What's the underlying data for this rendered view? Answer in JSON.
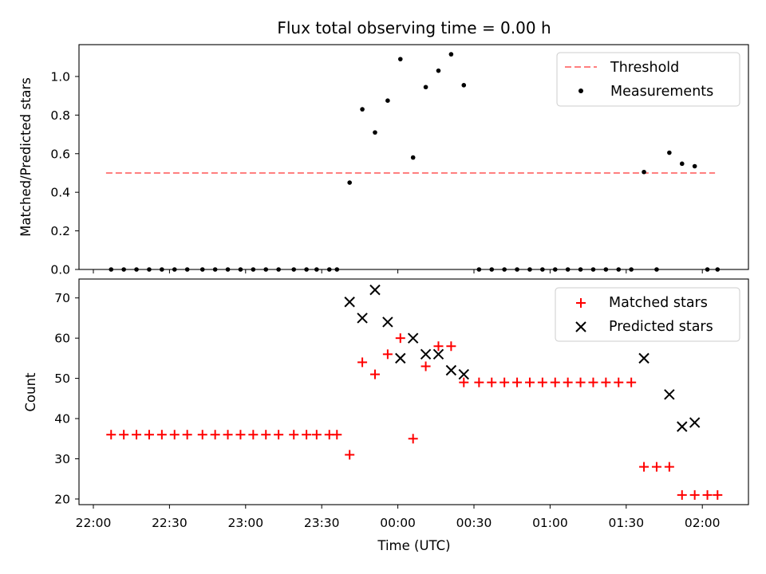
{
  "chart_data": [
    {
      "type": "scatter",
      "title": "Flux total observing time = 0.00 h",
      "xlabel": "",
      "ylabel": "Matched/Predicted stars",
      "ylim": [
        0,
        1.165
      ],
      "yticks": [
        "0.0",
        "0.2",
        "0.4",
        "0.6",
        "0.8",
        "1.0"
      ],
      "grid": false,
      "legend_position": "top-right",
      "threshold": {
        "name": "Threshold",
        "color": "#ff7f7f",
        "value": 0.5,
        "x_range": [
          "22:05",
          "02:05"
        ]
      },
      "measurements": {
        "name": "Measurements",
        "color": "#000000",
        "points": [
          [
            "22:07",
            0.0
          ],
          [
            "22:12",
            0.0
          ],
          [
            "22:17",
            0.0
          ],
          [
            "22:22",
            0.0
          ],
          [
            "22:27",
            0.0
          ],
          [
            "22:32",
            0.0
          ],
          [
            "22:37",
            0.0
          ],
          [
            "22:43",
            0.0
          ],
          [
            "22:48",
            0.0
          ],
          [
            "22:53",
            0.0
          ],
          [
            "22:58",
            0.0
          ],
          [
            "23:03",
            0.0
          ],
          [
            "23:08",
            0.0
          ],
          [
            "23:13",
            0.0
          ],
          [
            "23:19",
            0.0
          ],
          [
            "23:24",
            0.0
          ],
          [
            "23:28",
            0.0
          ],
          [
            "23:33",
            0.0
          ],
          [
            "23:36",
            0.0
          ],
          [
            "23:41",
            0.45
          ],
          [
            "23:46",
            0.83
          ],
          [
            "23:51",
            0.71
          ],
          [
            "23:56",
            0.875
          ],
          [
            "00:01",
            1.09
          ],
          [
            "00:06",
            0.58
          ],
          [
            "00:11",
            0.945
          ],
          [
            "00:16",
            1.03
          ],
          [
            "00:21",
            1.115
          ],
          [
            "00:26",
            0.955
          ],
          [
            "00:32",
            0.0
          ],
          [
            "00:37",
            0.0
          ],
          [
            "00:42",
            0.0
          ],
          [
            "00:47",
            0.0
          ],
          [
            "00:52",
            0.0
          ],
          [
            "00:57",
            0.0
          ],
          [
            "01:02",
            0.0
          ],
          [
            "01:07",
            0.0
          ],
          [
            "01:12",
            0.0
          ],
          [
            "01:17",
            0.0
          ],
          [
            "01:22",
            0.0
          ],
          [
            "01:27",
            0.0
          ],
          [
            "01:32",
            0.0
          ],
          [
            "01:37",
            0.505
          ],
          [
            "01:42",
            0.0
          ],
          [
            "01:47",
            0.605
          ],
          [
            "01:52",
            0.548
          ],
          [
            "01:57",
            0.535
          ],
          [
            "02:02",
            0.0
          ],
          [
            "02:06",
            0.0
          ]
        ]
      }
    },
    {
      "type": "scatter",
      "title": "",
      "xlabel": "Time (UTC)",
      "ylabel": "Count",
      "ylim": [
        18.6,
        74.7
      ],
      "yticks": [
        "20",
        "30",
        "40",
        "50",
        "60",
        "70"
      ],
      "xticks": [
        "22:00",
        "22:30",
        "23:00",
        "23:30",
        "00:00",
        "00:30",
        "01:00",
        "01:30",
        "02:00"
      ],
      "grid": false,
      "legend_position": "top-right",
      "series": [
        {
          "name": "Matched stars",
          "marker": "plus",
          "color": "#ff0000",
          "points": [
            [
              "22:07",
              36
            ],
            [
              "22:12",
              36
            ],
            [
              "22:17",
              36
            ],
            [
              "22:22",
              36
            ],
            [
              "22:27",
              36
            ],
            [
              "22:32",
              36
            ],
            [
              "22:37",
              36
            ],
            [
              "22:43",
              36
            ],
            [
              "22:48",
              36
            ],
            [
              "22:53",
              36
            ],
            [
              "22:58",
              36
            ],
            [
              "23:03",
              36
            ],
            [
              "23:08",
              36
            ],
            [
              "23:13",
              36
            ],
            [
              "23:19",
              36
            ],
            [
              "23:24",
              36
            ],
            [
              "23:28",
              36
            ],
            [
              "23:33",
              36
            ],
            [
              "23:36",
              36
            ],
            [
              "23:41",
              31
            ],
            [
              "23:46",
              54
            ],
            [
              "23:51",
              51
            ],
            [
              "23:56",
              56
            ],
            [
              "00:01",
              60
            ],
            [
              "00:06",
              35
            ],
            [
              "00:11",
              53
            ],
            [
              "00:16",
              58
            ],
            [
              "00:21",
              58
            ],
            [
              "00:26",
              49
            ],
            [
              "00:32",
              49
            ],
            [
              "00:37",
              49
            ],
            [
              "00:42",
              49
            ],
            [
              "00:47",
              49
            ],
            [
              "00:52",
              49
            ],
            [
              "00:57",
              49
            ],
            [
              "01:02",
              49
            ],
            [
              "01:07",
              49
            ],
            [
              "01:12",
              49
            ],
            [
              "01:17",
              49
            ],
            [
              "01:22",
              49
            ],
            [
              "01:27",
              49
            ],
            [
              "01:32",
              49
            ],
            [
              "01:37",
              28
            ],
            [
              "01:42",
              28
            ],
            [
              "01:47",
              28
            ],
            [
              "01:52",
              21
            ],
            [
              "01:57",
              21
            ],
            [
              "02:02",
              21
            ],
            [
              "02:06",
              21
            ]
          ]
        },
        {
          "name": "Predicted stars",
          "marker": "x",
          "color": "#000000",
          "points": [
            [
              "23:41",
              69
            ],
            [
              "23:46",
              65
            ],
            [
              "23:51",
              72
            ],
            [
              "23:56",
              64
            ],
            [
              "00:01",
              55
            ],
            [
              "00:06",
              60
            ],
            [
              "00:11",
              56
            ],
            [
              "00:16",
              56
            ],
            [
              "00:21",
              52
            ],
            [
              "00:26",
              51
            ],
            [
              "01:37",
              55
            ],
            [
              "01:47",
              46
            ],
            [
              "01:52",
              38
            ],
            [
              "01:57",
              39
            ]
          ]
        }
      ]
    }
  ]
}
